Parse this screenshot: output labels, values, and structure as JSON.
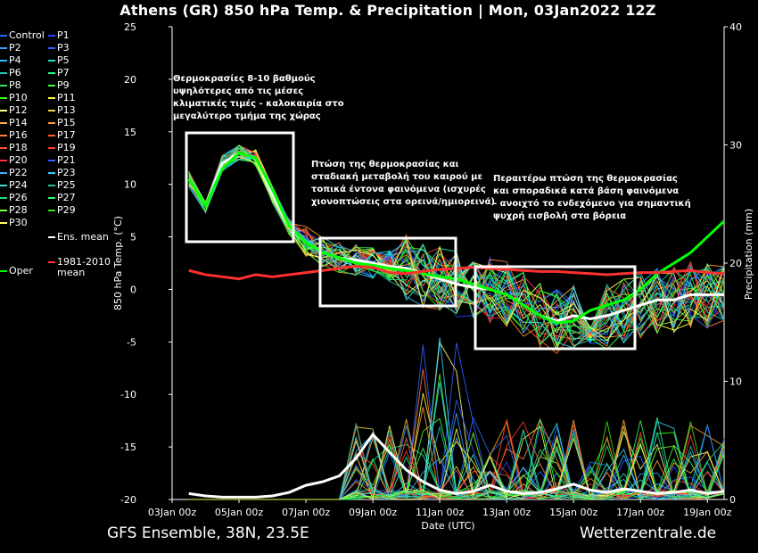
{
  "title": "Athens  (GR)  850 hPa Temp. & Precipitation | Mon, 03Jan2022 12Z",
  "footer": {
    "left": "GFS Ensemble, 38N, 23.5E",
    "right": "Wetterzentrale.de"
  },
  "legend": {
    "items": [
      {
        "label": "Control",
        "color": "#1e6cff"
      },
      {
        "label": "P1",
        "color": "#2244ff"
      },
      {
        "label": "P2",
        "color": "#3aa0ff"
      },
      {
        "label": "P3",
        "color": "#3a5cff"
      },
      {
        "label": "P4",
        "color": "#29c0ff"
      },
      {
        "label": "P5",
        "color": "#20e0c0"
      },
      {
        "label": "P6",
        "color": "#20d0b0"
      },
      {
        "label": "P7",
        "color": "#20ff90"
      },
      {
        "label": "P8",
        "color": "#30e060"
      },
      {
        "label": "P9",
        "color": "#40ff40"
      },
      {
        "label": "P10",
        "color": "#40ff20"
      },
      {
        "label": "P11",
        "color": "#ffff40"
      },
      {
        "label": "P12",
        "color": "#ffff80"
      },
      {
        "label": "P13",
        "color": "#f0d040"
      },
      {
        "label": "P14",
        "color": "#ffb040"
      },
      {
        "label": "P15",
        "color": "#ff9a30"
      },
      {
        "label": "P16",
        "color": "#ff8040"
      },
      {
        "label": "P17",
        "color": "#ff6030"
      },
      {
        "label": "P18",
        "color": "#ff5020"
      },
      {
        "label": "P19",
        "color": "#ff4020"
      },
      {
        "label": "P20",
        "color": "#ff3040"
      },
      {
        "label": "P21",
        "color": "#3060ff"
      },
      {
        "label": "P22",
        "color": "#40b0ff"
      },
      {
        "label": "P23",
        "color": "#30d0ff"
      },
      {
        "label": "P24",
        "color": "#30e0e0"
      },
      {
        "label": "P25",
        "color": "#20c0a0"
      },
      {
        "label": "P26",
        "color": "#20e070"
      },
      {
        "label": "P27",
        "color": "#30ff60"
      },
      {
        "label": "P28",
        "color": "#80ff40"
      },
      {
        "label": "P29",
        "color": "#40e020"
      },
      {
        "label": "P30",
        "color": "#ffff60"
      },
      {
        "label": "Ens. mean",
        "color": "#ffffff"
      },
      {
        "label": "Oper",
        "color": "#00ff00"
      },
      {
        "label": "1981-2010 mean",
        "color": "#ff3030"
      }
    ]
  },
  "annotations": [
    {
      "lines": [
        "Θερμοκρασίες 8-10 βαθμούς",
        "υψηλότερες από τις μέσες",
        "κλιματικές τιμές - καλοκαιρία στο",
        "μεγαλύτερο τμήμα της χώρας"
      ]
    },
    {
      "lines": [
        "Πτώση της θερμοκρασίας και",
        "σταδιακή μεταβολή του καιρού με",
        "τοπικά έντονα φαινόμενα (ισχυρές",
        "χιονοπτώσεις στα ορεινά/ημιορεινά)"
      ]
    },
    {
      "lines": [
        "Περαιτέρω πτώση της θερμοκρασίας",
        "και σποραδικά κατά βάση φαινόμενα",
        "- ανοιχτό το ενδεχόμενο για σημαντική",
        "ψυχρή εισβολή στα βόρεια"
      ]
    }
  ],
  "chart_data": {
    "type": "line",
    "xlabel": "Date (UTC)",
    "ylabel": "850 hPa Temp. (°C)",
    "y2label": "Precipitation (mm)",
    "ylim": [
      -20,
      25
    ],
    "y2lim": [
      0,
      40
    ],
    "xlim": [
      0,
      16.5
    ],
    "x_ticks": [
      {
        "day": 0,
        "label": "03Jan 00z"
      },
      {
        "day": 2,
        "label": "05Jan 00z"
      },
      {
        "day": 4,
        "label": "07Jan 00z"
      },
      {
        "day": 6,
        "label": "09Jan 00z"
      },
      {
        "day": 8,
        "label": "11Jan 00z"
      },
      {
        "day": 10,
        "label": "13Jan 00z"
      },
      {
        "day": 12,
        "label": "15Jan 00z"
      },
      {
        "day": 14,
        "label": "17Jan 00z"
      },
      {
        "day": 16,
        "label": "19Jan 00z"
      }
    ],
    "y_ticks": [
      -20,
      -15,
      -10,
      -5,
      0,
      5,
      10,
      15,
      20,
      25
    ],
    "y2_ticks": [
      0,
      10,
      20,
      30,
      40
    ],
    "grid": false,
    "legend": "left",
    "series": [
      {
        "name": "Ens. mean",
        "x": [
          0.5,
          1,
          1.5,
          2,
          2.5,
          3,
          3.5,
          4,
          4.5,
          5,
          5.5,
          6,
          6.5,
          7,
          7.5,
          8,
          8.5,
          9,
          9.5,
          10,
          10.5,
          11,
          11.5,
          12,
          12.5,
          13,
          13.5,
          14,
          14.5,
          15,
          15.5,
          16,
          16.5
        ],
        "y": [
          10.5,
          8,
          12,
          13,
          12.5,
          9,
          6,
          4.5,
          3.5,
          3,
          2.8,
          2.5,
          2.2,
          2,
          1.5,
          1,
          0.5,
          0.2,
          0,
          -0.5,
          -1.5,
          -2.5,
          -3,
          -2.5,
          -2.8,
          -2.5,
          -2,
          -1.5,
          -1,
          -1,
          -0.5,
          -0.5,
          -0.5
        ]
      },
      {
        "name": "Oper",
        "x": [
          0.5,
          1,
          1.5,
          2,
          2.5,
          3,
          3.5,
          4,
          4.5,
          5,
          5.5,
          6,
          6.5,
          7,
          7.5,
          8,
          8.5,
          9,
          9.5,
          10,
          10.5,
          11,
          11.5,
          12,
          12.5,
          13,
          13.5,
          14,
          14.5,
          15,
          15.5,
          16,
          16.5
        ],
        "y": [
          10.5,
          8,
          11.5,
          13,
          12.5,
          9.5,
          6,
          4.5,
          3.5,
          3,
          2.5,
          2.3,
          2,
          1.8,
          1.5,
          1.2,
          1,
          0.5,
          0,
          -0.5,
          -1.5,
          -2.5,
          -3.2,
          -3,
          -2,
          -1.5,
          -1,
          0,
          1.5,
          2.5,
          3.5,
          5,
          6.5
        ]
      },
      {
        "name": "1981-2010 mean",
        "x": [
          0.5,
          1,
          1.5,
          2,
          2.5,
          3,
          3.5,
          4,
          4.5,
          5,
          5.5,
          6,
          6.5,
          7,
          7.5,
          8,
          8.5,
          9,
          9.5,
          10,
          10.5,
          11,
          11.5,
          12,
          12.5,
          13,
          13.5,
          14,
          14.5,
          15,
          15.5,
          16,
          16.5
        ],
        "y": [
          1.8,
          1.4,
          1.2,
          1,
          1.4,
          1.2,
          1.4,
          1.6,
          1.8,
          2,
          2.2,
          2.1,
          1.6,
          1.5,
          1.7,
          1.9,
          2,
          2.1,
          2,
          1.9,
          1.8,
          1.7,
          1.7,
          1.6,
          1.5,
          1.4,
          1.5,
          1.6,
          1.6,
          1.7,
          1.8,
          1.6,
          1.5
        ]
      }
    ]
  }
}
